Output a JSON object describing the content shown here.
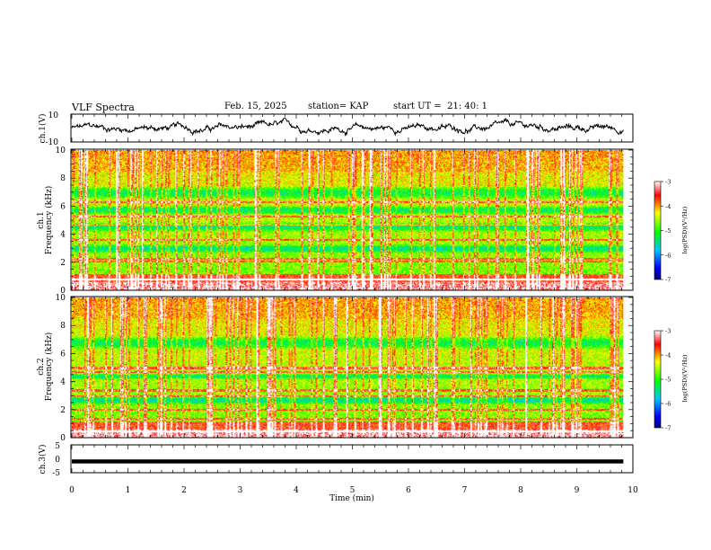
{
  "header": {
    "title": "VLF Spectra",
    "date": "Feb. 15, 2025",
    "station": "station= KAP",
    "start": "start UT =  21: 40: 1"
  },
  "chart_data": [
    {
      "type": "line",
      "name": "ch1-waveform",
      "ylabel": "ch.1(V)",
      "ylim": [
        -10,
        10
      ],
      "yticks": [
        "10",
        "-10"
      ],
      "xlim": [
        0,
        10
      ],
      "data_end_min": 9.83
    },
    {
      "type": "heatmap",
      "name": "ch1-spectrogram",
      "ylabel_channel": "ch.1",
      "ylabel": "Frequency (kHz)",
      "ylim": [
        0,
        10
      ],
      "yticks": [
        "0",
        "2",
        "4",
        "6",
        "8",
        "10"
      ],
      "xlim": [
        0,
        10
      ],
      "data_end_min": 9.83,
      "colorbar": {
        "label": "log(PSD)(V²/Hz)",
        "range": [
          -7,
          -3
        ],
        "ticks": [
          "-3",
          "-4",
          "-5",
          "-6",
          "-7"
        ]
      },
      "low_power_bands_khz": [
        [
          5.4,
          6.1
        ],
        [
          4.2,
          4.9
        ],
        [
          2.7,
          3.3
        ],
        [
          6.5,
          7.5
        ]
      ],
      "band_lines_khz": [
        6.3,
        5.3,
        4.7,
        3.6,
        2.3,
        2.1,
        0.8
      ]
    },
    {
      "type": "heatmap",
      "name": "ch2-spectrogram",
      "ylabel_channel": "ch.2",
      "ylabel": "Frequency (kHz)",
      "ylim": [
        0,
        10
      ],
      "yticks": [
        "0",
        "2",
        "4",
        "6",
        "8",
        "10"
      ],
      "xlim": [
        0,
        10
      ],
      "data_end_min": 9.83,
      "colorbar": {
        "label": "log(PSD)(V²/Hz)",
        "range": [
          -7,
          -3
        ],
        "ticks": [
          "-3",
          "-4",
          "-5",
          "-6",
          "-7"
        ]
      },
      "low_power_bands_khz": [
        [
          2.4,
          3.0
        ],
        [
          6.3,
          7.3
        ],
        [
          4.2,
          4.6
        ]
      ],
      "band_lines_khz": [
        5.0,
        4.7,
        3.4,
        3.0,
        2.0,
        1.4,
        0.5
      ]
    },
    {
      "type": "line",
      "name": "ch3-waveform",
      "ylabel": "ch.3(V)",
      "ylim": [
        -5,
        5
      ],
      "yticks": [
        "5",
        "0",
        "-5"
      ],
      "xlim": [
        0,
        10
      ],
      "data_end_min": 9.83,
      "level_v": -0.5,
      "band_halfwidth_v": 0.25
    }
  ],
  "x_axis": {
    "label": "Time (min)",
    "ticks": [
      "0",
      "1",
      "2",
      "3",
      "4",
      "5",
      "6",
      "7",
      "8",
      "9",
      "10"
    ]
  }
}
